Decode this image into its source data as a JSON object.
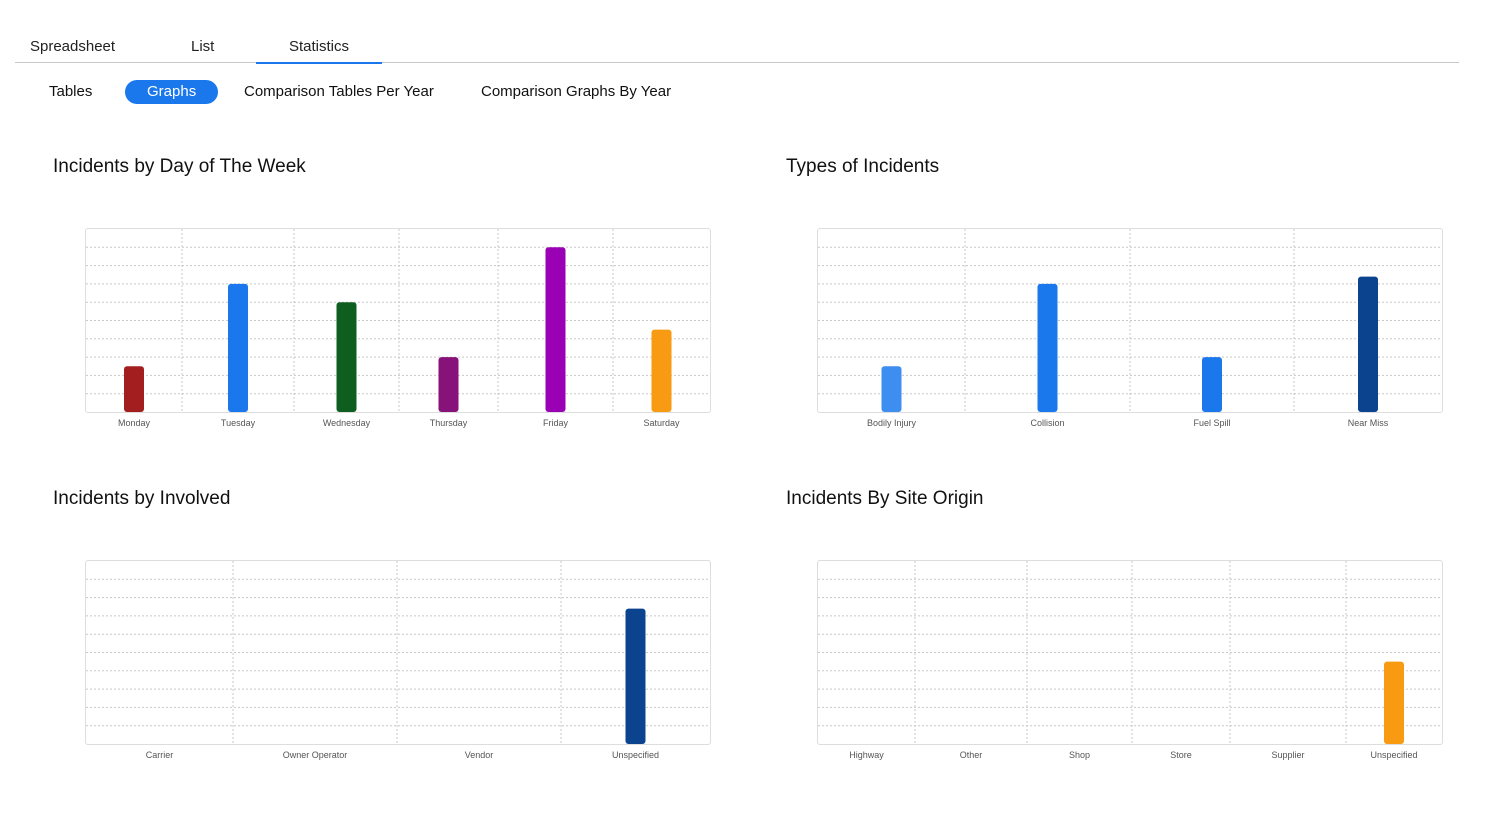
{
  "tabs": [
    "Spreadsheet",
    "List",
    "Statistics"
  ],
  "active_tab": "Statistics",
  "subtabs": [
    "Tables",
    "Graphs",
    "Comparison Tables Per Year",
    "Comparison Graphs By Year"
  ],
  "active_subtab": "Graphs",
  "chart_data": [
    {
      "type": "bar",
      "title": "Incidents by Day of The Week",
      "categories": [
        "Monday",
        "Tuesday",
        "Wednesday",
        "Thursday",
        "Friday",
        "Saturday"
      ],
      "values": [
        2.5,
        7,
        6,
        3,
        9,
        4.5
      ],
      "colors": [
        "#a31f1f",
        "#1a78ec",
        "#0e5e20",
        "#86127a",
        "#9a00b4",
        "#f99b12"
      ],
      "ylim": [
        0,
        10
      ],
      "grid": true
    },
    {
      "type": "bar",
      "title": "Types of Incidents",
      "categories": [
        "Bodily Injury",
        "Collision",
        "Fuel Spill",
        "Near Miss"
      ],
      "values": [
        2.5,
        7,
        3,
        7.4
      ],
      "colors": [
        "#3d8ef0",
        "#1a78ec",
        "#1a78ec",
        "#0b438f"
      ],
      "ylim": [
        0,
        10
      ],
      "grid": true
    },
    {
      "type": "bar",
      "title": "Incidents by Involved",
      "categories": [
        "Carrier",
        "Owner Operator",
        "Vendor",
        "Unspecified"
      ],
      "values": [
        0,
        0,
        0,
        7.4
      ],
      "colors": [
        "#0b438f",
        "#0b438f",
        "#0b438f",
        "#0b438f"
      ],
      "ylim": [
        0,
        10
      ],
      "grid": true
    },
    {
      "type": "bar",
      "title": "Incidents By Site Origin",
      "categories": [
        "Highway",
        "Other",
        "Shop",
        "Store",
        "Supplier",
        "Unspecified"
      ],
      "values": [
        0,
        0,
        0,
        0,
        0,
        4.5
      ],
      "colors": [
        "#f99b12",
        "#f99b12",
        "#f99b12",
        "#f99b12",
        "#f99b12",
        "#f99b12"
      ],
      "ylim": [
        0,
        10
      ],
      "grid": true
    }
  ]
}
